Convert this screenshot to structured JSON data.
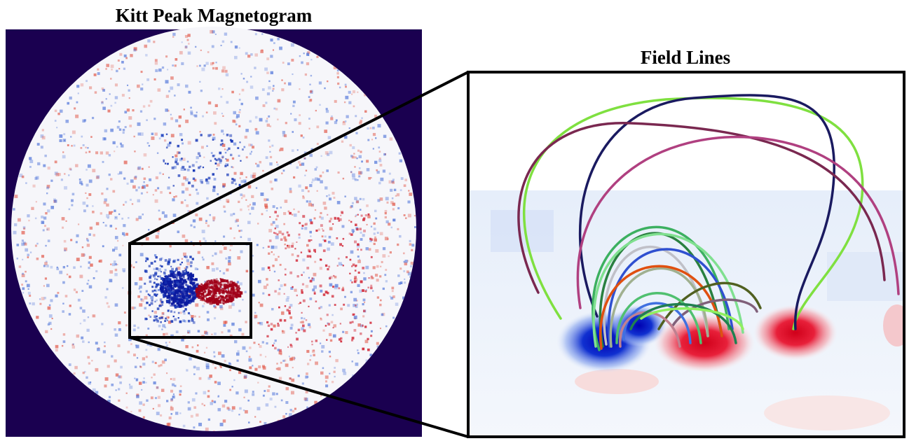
{
  "panels": [
    {
      "title": "Kitt Peak Magnetogram"
    },
    {
      "title": "Field Lines"
    }
  ]
}
